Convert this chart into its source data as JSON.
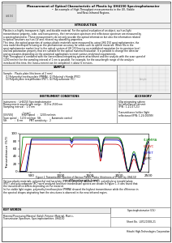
{
  "title_line1": "Measurement of Optical Characteristic of Plastic by UH4150 Spectrophotometer",
  "title_line2": "•  An example of High Throughput measurements in the UV, Visible",
  "title_line3": "and Near-Infrared Regions.",
  "section_introduction": "INTRODUCTION",
  "section_sample": "SAMPLE",
  "section_instrument": "INSTRUMENT CONDITIONS",
  "section_accessory": "ACCESSORY",
  "intro_lines": [
    "Plastics is a highly transparent, light, and durable material. For the optical evaluation of an object, such as light",
    "transmittance property, color, and transparency, the transmission spectrum and reflectance spectrum are measured by",
    "a spectrophotometer. These measurements do not only provide the optical information but also the information related",
    "to optical functions such as UV and infrared ray absorbing properties.",
    "This time, the optical properties of various plastic materials were measured by using UH4 150 spectrophotometer, the",
    "new model developed focusing on the phenomenon accuracy for solids such as optical materials. What fills in the",
    "spectrophotometer market level is the optical system of UH 150 having an established reputation for its precision level",
    "and low polarization property that are suitable for the optical material evaluation. It is possible to change the detector",
    "and accessories depending on the analytical applications to meet various analytical requirements.",
    "High Throughput is combined with the conventional integrating sphere attachment and the analytic with the scan speed of",
    "1200 nm/min for the sampling interval of 1 nm is possible. For example, for the wavelength range of the analysis",
    "introduced this time, the measurement can be completed in about 6 minutes."
  ],
  "sample_lines": [
    "Sample :  Plastic plate (thickness of 2 mm)",
    "   (1) Polymethyl methacrylate (PMMA), (2) Polyvinyl chloride (PVC)",
    "   (3) Polyethylene terephthalate (PET), (4) Polycarbonate (PC)"
  ],
  "instrument_lines": [
    "Instrument :  UH4150 Spectrophotometer",
    "Measurement wavelength range :  310 to 2500 nm",
    "Sampling interval :  1.0 nm",
    "",
    "                            [scan]",
    "[UV/VIS]            Scan speed    :  1200 nm/min",
    "Scan speed  :  1200 nm/min  Slit            :  Automatic control",
    "Slit           :  8 nm         PMT sensitivity :  2"
  ],
  "accessory_lines": [
    "60φ integrating sphere",
    "for reflectance/transmit",
    "(P/N : 1-21-07-21)",
    "",
    "Transmittance holder (light",
    "reflectance)(P/N: 1-26-00099)"
  ],
  "legend_labels": [
    "(1)PMMA",
    "(2)PVC",
    "(3)PET",
    "(4)PC"
  ],
  "legend_colors": [
    "#008000",
    "#cc0000",
    "#0000cc",
    "#000000"
  ],
  "xlabel": "Wavelength (nm)",
  "ylabel": "Transmittance (%T)",
  "figure_caption": "Figure 1 Transmission Spectra of Various Plastic Plates (thickness of 2 mm) by UH4-50",
  "result_lines": [
    "Various plastic materials, polymethyl methacrylate (PMMA), polyvinyl chloride (PVC), polyethylene terephthalate",
    "(PET), and polycarbonate (PC) were analyzed and their transmission spectra are shown in Figure 1. It was found that",
    "the transmittance differs depending on the material.",
    "In the visible light region, polymethyl methacrylate (PMMA) showed the highest transmittance while the difference in",
    "the spectral shapes originating from the structures is observed in the near-infrared region."
  ],
  "key_words_label": "KEY WORDS",
  "key_words_lines": [
    "Material/Processing Material (Solid), Polymer Material, Plastic,",
    "Transmission Spectrum, Spectrophotometer, UH4150"
  ],
  "sheet_label": "Spectrophotometer (UV)",
  "sheet_number": "Sheet No.  LIV120008-21",
  "company": "Hitachi High-Technologies Corporation",
  "ylim": [
    0,
    100
  ],
  "xlim": [
    310,
    2500
  ],
  "xticks": [
    500,
    1000,
    1500,
    2000,
    2500
  ],
  "yticks": [
    0,
    20,
    40,
    60,
    80,
    100
  ],
  "background_color": "#ffffff"
}
